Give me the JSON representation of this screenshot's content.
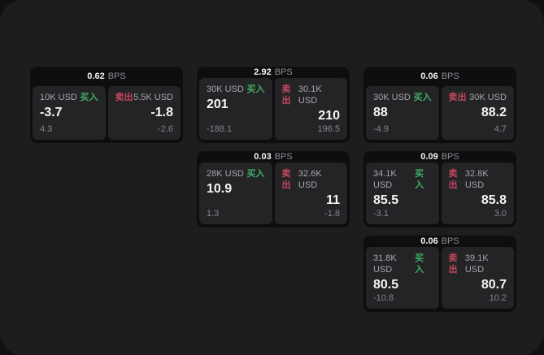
{
  "labels": {
    "buy": "买入",
    "sell": "卖出",
    "bps_unit": "BPS"
  },
  "colors": {
    "surface": "#1d1d1f",
    "card": "#0e0e10",
    "subpanel": "#242427",
    "buy_green": "#3fae63",
    "sell_red": "#c2485d",
    "text_primary": "#f4f4f6",
    "text_secondary": "#a6a6ab",
    "text_muted": "#85858a"
  },
  "cards": [
    {
      "bps": "0.62",
      "buy": {
        "amount": "10K USD",
        "price": "-3.7",
        "delta": "4.3"
      },
      "sell": {
        "amount": "5.5K USD",
        "price": "-1.8",
        "delta": "-2.6"
      }
    },
    {
      "bps": "2.92",
      "buy": {
        "amount": "30K USD",
        "price": "201",
        "delta": "-188.1"
      },
      "sell": {
        "amount": "30.1K USD",
        "price": "210",
        "delta": "196.5"
      }
    },
    {
      "bps": "0.06",
      "buy": {
        "amount": "30K USD",
        "price": "88",
        "delta": "-4.9"
      },
      "sell": {
        "amount": "30K USD",
        "price": "88.2",
        "delta": "4.7"
      }
    },
    {
      "bps": "0.03",
      "buy": {
        "amount": "28K USD",
        "price": "10.9",
        "delta": "1.3"
      },
      "sell": {
        "amount": "32.6K USD",
        "price": "11",
        "delta": "-1.8"
      }
    },
    {
      "bps": "0.09",
      "buy": {
        "amount": "34.1K USD",
        "price": "85.5",
        "delta": "-3.1"
      },
      "sell": {
        "amount": "32.8K USD",
        "price": "85.8",
        "delta": "3.0"
      }
    },
    {
      "bps": "0.06",
      "buy": {
        "amount": "31.8K USD",
        "price": "80.5",
        "delta": "-10.8"
      },
      "sell": {
        "amount": "39.1K USD",
        "price": "80.7",
        "delta": "10.2"
      }
    }
  ]
}
